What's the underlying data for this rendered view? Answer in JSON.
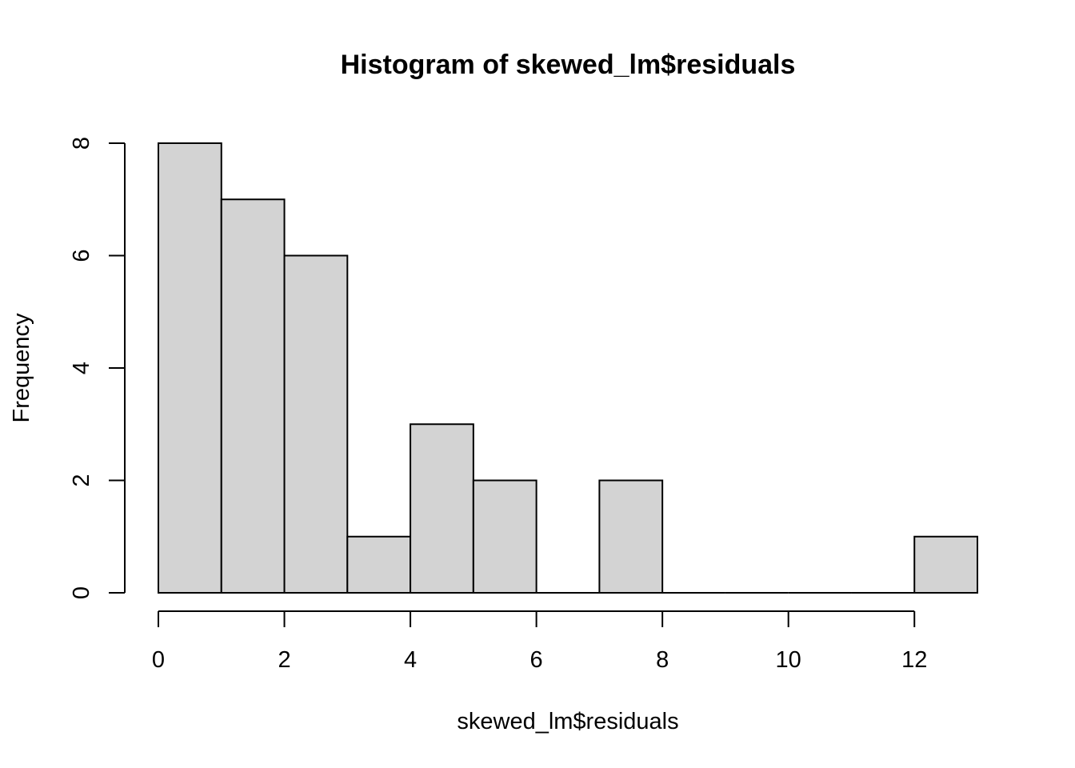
{
  "chart_data": {
    "type": "bar",
    "title": "Histogram of skewed_lm$residuals",
    "xlabel": "skewed_lm$residuals",
    "ylabel": "Frequency",
    "bin_edges": [
      0,
      1,
      2,
      3,
      4,
      5,
      6,
      7,
      8,
      9,
      10,
      11,
      12,
      13
    ],
    "values": [
      8,
      7,
      6,
      1,
      3,
      2,
      0,
      2,
      0,
      0,
      0,
      0,
      1
    ],
    "xlim": [
      0,
      13
    ],
    "ylim": [
      0,
      8
    ],
    "x_ticks": [
      "0",
      "2",
      "4",
      "6",
      "8",
      "10",
      "12"
    ],
    "y_ticks": [
      "0",
      "2",
      "4",
      "6",
      "8"
    ],
    "grid": false,
    "bar_color": "#d3d3d3",
    "edge_color": "#000000"
  }
}
